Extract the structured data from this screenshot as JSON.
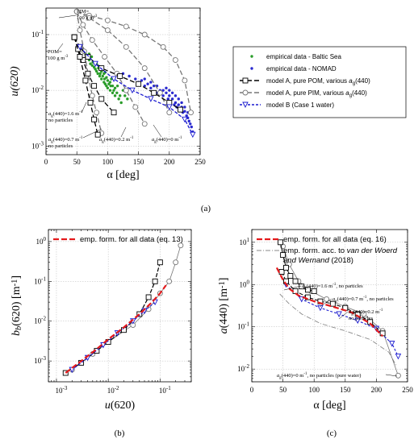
{
  "chart_data": [
    {
      "panel": "(a)",
      "type": "scatter",
      "xlabel": "α [deg]",
      "ylabel": "u(620)",
      "xlim": [
        0,
        250
      ],
      "ylim_log": [
        0.0007,
        0.3
      ],
      "xticks": [
        "0",
        "50",
        "100",
        "150",
        "200",
        "250"
      ],
      "yticks": [
        "10^-3",
        "10^-2",
        "10^-1"
      ],
      "grid": true,
      "legend_position": "right",
      "legend": [
        {
          "label": "empirical data - Baltic Sea",
          "color": "#2a9d2a",
          "marker": "dot"
        },
        {
          "label": "empirical data - NOMAD",
          "color": "#2a2acf",
          "marker": "dot"
        },
        {
          "label": "model A, pure POM, various a_g(440)",
          "color": "#000000",
          "marker": "square",
          "dash": "long"
        },
        {
          "label": "model A, pure PIM, various a_g(440)",
          "color": "#777777",
          "marker": "circle",
          "dash": "long"
        },
        {
          "label": "model B (Case 1 water)",
          "color": "#1a1acf",
          "marker": "triangle-down",
          "dash": "short"
        }
      ],
      "annotations": [
        {
          "text": "PIM=",
          "text2": "100 g m",
          "sup": "-3"
        },
        {
          "text": "POM=",
          "text2": "100 g m",
          "sup": "-3"
        },
        {
          "text": "a",
          "sub": "g",
          "rest": "(440)=1.6 m",
          "sup": "-1",
          "line2": "no particles"
        },
        {
          "text": "a",
          "sub": "g",
          "rest": "(440)=0.7 m",
          "sup": "-1",
          "line2": "no particles"
        },
        {
          "text": "a",
          "sub": "g",
          "rest": "(440)=0.2 m",
          "sup": "-1"
        },
        {
          "text": "a",
          "sub": "g",
          "rest": "(440)=0 m",
          "sup": "-1"
        }
      ],
      "series": [
        {
          "name": "model A, pure POM, various a_g(440)",
          "color": "#000000",
          "curves": [
            {
              "x": [
                46,
                55,
                68,
                90,
                120,
                150,
                175,
                200,
                218
              ],
              "y": [
                0.09,
                0.06,
                0.04,
                0.025,
                0.018,
                0.013,
                0.009,
                0.006,
                0.0045
              ]
            },
            {
              "x": [
                46,
                52,
                60,
                68,
                78,
                90,
                110
              ],
              "y": [
                0.09,
                0.055,
                0.035,
                0.02,
                0.012,
                0.007,
                0.004
              ]
            },
            {
              "x": [
                46,
                55,
                64,
                72,
                78,
                84
              ],
              "y": [
                0.09,
                0.04,
                0.015,
                0.006,
                0.003,
                0.0016
              ]
            }
          ]
        },
        {
          "name": "model A, pure PIM, various a_g(440)",
          "color": "#777777",
          "curves": [
            {
              "x": [
                50,
                70,
                100,
                130,
                160,
                190,
                210,
                225,
                235
              ],
              "y": [
                0.26,
                0.22,
                0.18,
                0.14,
                0.1,
                0.06,
                0.035,
                0.015,
                0.004
              ]
            },
            {
              "x": [
                50,
                60,
                75,
                95,
                115,
                130,
                145,
                160
              ],
              "y": [
                0.26,
                0.15,
                0.08,
                0.04,
                0.02,
                0.01,
                0.005,
                0.0025
              ]
            },
            {
              "x": [
                50,
                55,
                62,
                68,
                75,
                82,
                90
              ],
              "y": [
                0.26,
                0.12,
                0.05,
                0.02,
                0.008,
                0.004,
                0.0017
              ]
            },
            {
              "x": [
                50,
                70,
                100,
                130,
                160,
                185,
                200
              ],
              "y": [
                0.26,
                0.2,
                0.12,
                0.06,
                0.025,
                0.009,
                0.004
              ]
            }
          ]
        },
        {
          "name": "model B (Case 1 water)",
          "color": "#1a1acf",
          "x": [
            55,
            80,
            110,
            140,
            170,
            200,
            225,
            238
          ],
          "y": [
            0.06,
            0.03,
            0.016,
            0.01,
            0.007,
            0.005,
            0.003,
            0.0016
          ]
        },
        {
          "name": "empirical data - Baltic Sea",
          "color": "#2a9d2a",
          "x": [
            65,
            70,
            72,
            75,
            78,
            80,
            82,
            84,
            85,
            87,
            88,
            90,
            92,
            94,
            95,
            96,
            98,
            100,
            102,
            104,
            105,
            108,
            110,
            112,
            115,
            118,
            120,
            122,
            76,
            80,
            86,
            90,
            94,
            98,
            100,
            104,
            108,
            112,
            70,
            74,
            82,
            96,
            106,
            116,
            125,
            128,
            132,
            60,
            64
          ],
          "y": [
            0.04,
            0.035,
            0.03,
            0.028,
            0.026,
            0.024,
            0.022,
            0.02,
            0.025,
            0.018,
            0.02,
            0.016,
            0.018,
            0.014,
            0.016,
            0.013,
            0.012,
            0.011,
            0.013,
            0.01,
            0.012,
            0.009,
            0.01,
            0.008,
            0.009,
            0.007,
            0.008,
            0.006,
            0.032,
            0.03,
            0.027,
            0.022,
            0.02,
            0.017,
            0.015,
            0.014,
            0.012,
            0.011,
            0.045,
            0.04,
            0.03,
            0.021,
            0.016,
            0.012,
            0.01,
            0.008,
            0.007,
            0.05,
            0.045
          ]
        },
        {
          "name": "empirical data - NOMAD",
          "color": "#2a2acf",
          "x": [
            125,
            135,
            145,
            150,
            155,
            160,
            165,
            170,
            175,
            180,
            185,
            190,
            195,
            198,
            200,
            202,
            205,
            208,
            210,
            212,
            215,
            218,
            220,
            222,
            225,
            228,
            230,
            232,
            234,
            236,
            238,
            195,
            200,
            205,
            210,
            215,
            220,
            225,
            230,
            160,
            170,
            180,
            190
          ],
          "y": [
            0.02,
            0.018,
            0.016,
            0.014,
            0.015,
            0.012,
            0.013,
            0.011,
            0.012,
            0.009,
            0.01,
            0.008,
            0.009,
            0.007,
            0.008,
            0.006,
            0.007,
            0.0055,
            0.006,
            0.005,
            0.0055,
            0.0045,
            0.005,
            0.004,
            0.0042,
            0.0035,
            0.0032,
            0.0028,
            0.0025,
            0.0022,
            0.0018,
            0.011,
            0.01,
            0.009,
            0.008,
            0.007,
            0.006,
            0.005,
            0.004,
            0.016,
            0.014,
            0.012,
            0.01
          ]
        }
      ]
    },
    {
      "panel": "(b)",
      "type": "scatter",
      "xlabel": "u(620)",
      "ylabel": "b_b(620) [m^-1]",
      "xlim_log": [
        0.0007,
        0.4
      ],
      "ylim_log": [
        0.0003,
        2
      ],
      "xticks": [
        "10^-3",
        "10^-2",
        "10^-1"
      ],
      "yticks": [
        "10^-3",
        "10^-2",
        "10^-1",
        "10^0"
      ],
      "grid": true,
      "legend": [
        {
          "label": "emp. form. for all data (eq. 13)",
          "color": "#e41a1c",
          "dash": "long"
        }
      ],
      "series": [
        {
          "name": "emp. form. for all data (eq. 13)",
          "color": "#e41a1c",
          "x": [
            0.0015,
            0.003,
            0.006,
            0.01,
            0.02,
            0.04,
            0.07,
            0.1,
            0.13
          ],
          "y": [
            0.0005,
            0.001,
            0.002,
            0.0035,
            0.007,
            0.015,
            0.03,
            0.05,
            0.08
          ]
        },
        {
          "name": "model A, pure POM",
          "color": "#000000",
          "x": [
            0.0015,
            0.003,
            0.006,
            0.01,
            0.02,
            0.04,
            0.06,
            0.08,
            0.1
          ],
          "y": [
            0.0005,
            0.0009,
            0.0018,
            0.003,
            0.006,
            0.015,
            0.04,
            0.1,
            0.3
          ]
        },
        {
          "name": "model A, pure PIM",
          "color": "#777777",
          "x": [
            0.002,
            0.005,
            0.01,
            0.03,
            0.06,
            0.1,
            0.15,
            0.2,
            0.25
          ],
          "y": [
            0.0006,
            0.0015,
            0.003,
            0.008,
            0.02,
            0.05,
            0.1,
            0.3,
            0.8
          ]
        },
        {
          "name": "model B (Case 1 water)",
          "color": "#1a1acf",
          "x": [
            0.002,
            0.004,
            0.008,
            0.015,
            0.03,
            0.05,
            0.08
          ],
          "y": [
            0.0006,
            0.0012,
            0.0025,
            0.005,
            0.01,
            0.018,
            0.03
          ]
        }
      ]
    },
    {
      "panel": "(c)",
      "type": "scatter",
      "xlabel": "α [deg]",
      "ylabel": "a(440) [m^-1]",
      "xlim": [
        0,
        250
      ],
      "ylim_log": [
        0.005,
        20
      ],
      "xticks": [
        "0",
        "50",
        "100",
        "150",
        "200",
        "250"
      ],
      "yticks": [
        "10^-2",
        "10^-1",
        "10^0",
        "10^1"
      ],
      "grid": true,
      "legend": [
        {
          "label": "emp. form. for all data (eq. 16)",
          "color": "#e41a1c",
          "dash": "long"
        },
        {
          "label": "emp. form. acc. to van der Woerd and Wernand (2018)",
          "line1": "emp. form. acc. to ",
          "italic1": "van der Woerd",
          "line2italic": "and Wernand",
          "line2rest": " (2018)",
          "color": "#888888",
          "dash": "dashdot"
        }
      ],
      "annotations": [
        {
          "text": "a",
          "sub": "g",
          "rest": "(440)=1.6 m",
          "sup": "-1",
          "tail": ", no particles"
        },
        {
          "text": "a",
          "sub": "g",
          "rest": "(440)=0.7 m",
          "sup": "-1",
          "tail": ", no particles"
        },
        {
          "text": "a",
          "sub": "g",
          "rest": "(440)=0.2 m",
          "sup": "-1",
          "line2": "no particles"
        },
        {
          "text": "a",
          "sub": "g",
          "rest": "(440)=0 m",
          "sup": "-1",
          "tail": ", no particles (pure water)"
        }
      ],
      "series": [
        {
          "name": "emp. form. for all data (eq. 16)",
          "color": "#e41a1c",
          "x": [
            40,
            50,
            60,
            75,
            100,
            130,
            160,
            190,
            210
          ],
          "y": [
            2.5,
            1.3,
            0.8,
            0.55,
            0.4,
            0.3,
            0.22,
            0.12,
            0.06
          ]
        },
        {
          "name": "emp. form. acc. to van der Woerd and Wernand (2018)",
          "color": "#888888",
          "x": [
            45,
            60,
            80,
            110,
            150,
            190,
            220,
            232
          ],
          "y": [
            0.6,
            0.35,
            0.2,
            0.12,
            0.08,
            0.05,
            0.025,
            0.012
          ]
        },
        {
          "name": "model A, pure POM",
          "color": "#000000",
          "x": [
            46,
            50,
            55,
            62,
            70,
            80,
            90,
            100
          ],
          "y": [
            10,
            5,
            2.5,
            1.6,
            1.2,
            0.9,
            0.75,
            0.7
          ]
        },
        {
          "name": "model A, pure PIM",
          "color": "#777777",
          "x": [
            50,
            60,
            75,
            95,
            120,
            150,
            180,
            210,
            235
          ],
          "y": [
            8,
            3,
            1.2,
            0.7,
            0.45,
            0.3,
            0.2,
            0.08,
            0.007
          ]
        },
        {
          "name": "model B (Case 1 water)",
          "color": "#1a1acf",
          "x": [
            55,
            80,
            110,
            140,
            170,
            200,
            225,
            235
          ],
          "y": [
            1.0,
            0.45,
            0.28,
            0.2,
            0.14,
            0.09,
            0.04,
            0.02
          ]
        },
        {
          "name": "black markers upper",
          "color": "#000000",
          "x": [
            48,
            55,
            70,
            90,
            110,
            130,
            150,
            170,
            190,
            210
          ],
          "y": [
            2.0,
            1.2,
            0.7,
            0.5,
            0.4,
            0.35,
            0.28,
            0.2,
            0.13,
            0.07
          ]
        }
      ]
    }
  ],
  "panel_labels": {
    "a": "(a)",
    "b": "(b)",
    "c": "(c)"
  }
}
